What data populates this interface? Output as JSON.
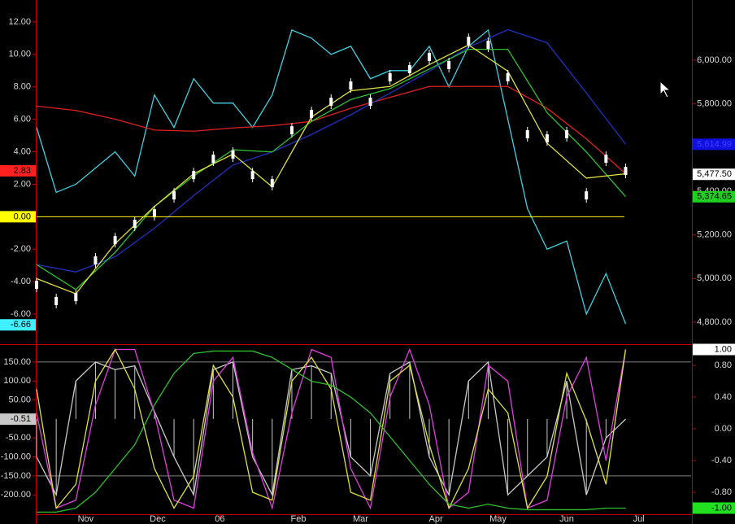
{
  "chart_data": [
    {
      "type": "line",
      "xlim": [
        0,
        200
      ],
      "ylim": [
        -7.6,
        13.35
      ],
      "yticks": [
        {
          "value": 12,
          "label": "12.00"
        },
        {
          "value": 10,
          "label": "10.00"
        },
        {
          "value": 8,
          "label": "8.00"
        },
        {
          "value": 6,
          "label": "6.00"
        },
        {
          "value": 4,
          "label": "4.00"
        },
        {
          "value": 2,
          "label": "2.00"
        },
        {
          "value": -2,
          "label": "-2.00"
        },
        {
          "value": -4,
          "label": "-4.00"
        },
        {
          "value": -6,
          "label": "-6.00"
        }
      ],
      "y2lim": [
        4718,
        6276
      ],
      "y2ticks": [
        {
          "value": 6000,
          "label": "6,000.00"
        },
        {
          "value": 5800,
          "label": "5,800.00"
        },
        {
          "value": 5400,
          "label": "5,400.00"
        },
        {
          "value": 5200,
          "label": "5,200.00"
        },
        {
          "value": 5000,
          "label": "5,000.00"
        },
        {
          "value": 4800,
          "label": "4,800.00"
        }
      ],
      "series": [
        {
          "style": "line",
          "color": "#40d0e0",
          "axis": "y",
          "x": [
            0,
            6,
            12,
            18,
            24,
            30,
            36,
            42,
            48,
            54,
            60,
            66,
            72,
            78,
            84,
            90,
            96,
            102,
            108,
            114,
            120,
            126,
            132,
            138,
            144,
            150,
            156,
            162,
            168,
            174,
            180
          ],
          "values": [
            5.5,
            1.5,
            2.0,
            3.0,
            4.0,
            2.5,
            7.5,
            5.5,
            8.5,
            7.0,
            7.0,
            5.5,
            7.5,
            11.5,
            11.0,
            10.0,
            10.5,
            8.5,
            9.0,
            9.0,
            10.5,
            8.0,
            10.5,
            11.5,
            6.0,
            0.5,
            -2.0,
            -1.5,
            -6.0,
            -3.5,
            -6.6
          ]
        },
        {
          "style": "line",
          "color": "#e02020",
          "axis": "y2",
          "x": [
            0,
            12,
            24,
            36,
            48,
            60,
            72,
            84,
            96,
            108,
            120,
            132,
            144,
            156,
            168,
            180
          ],
          "values": [
            5790,
            5770,
            5730,
            5680,
            5675,
            5690,
            5700,
            5720,
            5780,
            5830,
            5880,
            5880,
            5880,
            5780,
            5640,
            5480
          ]
        },
        {
          "style": "line",
          "color": "#2030c0",
          "axis": "y2",
          "x": [
            0,
            12,
            24,
            36,
            48,
            60,
            72,
            84,
            96,
            108,
            120,
            132,
            144,
            156,
            168,
            180
          ],
          "values": [
            5064,
            5030,
            5100,
            5230,
            5380,
            5520,
            5580,
            5660,
            5750,
            5850,
            5950,
            6060,
            6140,
            6080,
            5850,
            5615
          ]
        },
        {
          "style": "line",
          "color": "#30c030",
          "axis": "y2",
          "x": [
            0,
            12,
            24,
            36,
            48,
            60,
            72,
            84,
            96,
            108,
            120,
            132,
            144,
            156,
            168,
            180
          ],
          "values": [
            5064,
            4950,
            5120,
            5330,
            5470,
            5590,
            5580,
            5720,
            5820,
            5870,
            5960,
            6050,
            6050,
            5760,
            5580,
            5375
          ]
        },
        {
          "style": "line",
          "color": "#e0e040",
          "axis": "y2",
          "x": [
            0,
            12,
            24,
            36,
            48,
            60,
            72,
            84,
            96,
            108,
            120,
            132,
            144,
            156,
            168,
            180
          ],
          "values": [
            5000,
            4930,
            5160,
            5330,
            5480,
            5570,
            5420,
            5740,
            5860,
            5880,
            5980,
            6070,
            5950,
            5620,
            5460,
            5480
          ]
        },
        {
          "style": "candles",
          "color": "#ffffff",
          "axis": "y2",
          "x": [
            0,
            6,
            12,
            18,
            24,
            30,
            36,
            42,
            48,
            54,
            60,
            66,
            72,
            78,
            84,
            90,
            96,
            102,
            108,
            114,
            120,
            126,
            132,
            138,
            144,
            150,
            156,
            162,
            168,
            174,
            180
          ],
          "values": [
            4971,
            4897,
            4915,
            5083,
            5176,
            5251,
            5299,
            5381,
            5474,
            5549,
            5568,
            5474,
            5437,
            5679,
            5754,
            5810,
            5884,
            5810,
            5922,
            5959,
            6015,
            5978,
            6089,
            6071,
            5922,
            5661,
            5642,
            5661,
            5381,
            5549,
            5493
          ]
        }
      ],
      "markers": [
        {
          "value": 2.83,
          "label": "2.83",
          "color": "#ff2020",
          "axis": "y",
          "line": false
        },
        {
          "value": 0,
          "label": "0.00",
          "color": "#ffff00",
          "axis": "y",
          "line": true
        },
        {
          "value": -6.66,
          "label": "-6.66",
          "color": "#40f0ff",
          "axis": "y",
          "line": false
        },
        {
          "value": 5614.99,
          "label": "5,614.99",
          "color": "#1010e0",
          "axis": "y2",
          "line": false
        },
        {
          "value": 5477.5,
          "label": "5,477.50",
          "color": "#ffffff",
          "axis": "y2",
          "line": false
        },
        {
          "value": 5374.65,
          "label": "5,374.65",
          "color": "#20d020",
          "axis": "y2",
          "line": false
        }
      ]
    },
    {
      "type": "line",
      "xlim": [
        0,
        200
      ],
      "xticks": [
        {
          "value": 15,
          "label": "Nov"
        },
        {
          "value": 37,
          "label": "Dec"
        },
        {
          "value": 56,
          "label": "06"
        },
        {
          "value": 80,
          "label": "Feb"
        },
        {
          "value": 99,
          "label": "Mar"
        },
        {
          "value": 122,
          "label": "Apr"
        },
        {
          "value": 141,
          "label": "May"
        },
        {
          "value": 162,
          "label": "Jun"
        },
        {
          "value": 184,
          "label": "Jul"
        }
      ],
      "ylim": [
        -251,
        182
      ],
      "yticks": [
        {
          "value": 150,
          "label": "150.00"
        },
        {
          "value": 100,
          "label": "100.00"
        },
        {
          "value": 50,
          "label": "50.00"
        },
        {
          "value": -50,
          "label": "-50.00"
        },
        {
          "value": -100,
          "label": "-100.00"
        },
        {
          "value": -150,
          "label": "-150.00"
        },
        {
          "value": -200,
          "label": "-200.00"
        }
      ],
      "y2lim": [
        -1.077,
        0.995
      ],
      "y2ticks": [
        {
          "value": 0.8,
          "label": "0.80"
        },
        {
          "value": 0.4,
          "label": "0.40"
        },
        {
          "value": 0,
          "label": "0.00"
        },
        {
          "value": -0.4,
          "label": "-0.40"
        },
        {
          "value": -0.8,
          "label": "-0.80"
        }
      ],
      "reference_lines": [
        150,
        -150
      ],
      "series": [
        {
          "style": "histogram",
          "color": "#c8c8c8",
          "axis": "y",
          "x": [
            0,
            6,
            12,
            18,
            24,
            30,
            36,
            42,
            48,
            54,
            60,
            66,
            72,
            78,
            84,
            90,
            96,
            102,
            108,
            114,
            120,
            126,
            132,
            138,
            144,
            150,
            156,
            162,
            168,
            174,
            180
          ],
          "values": [
            -100,
            -200,
            100,
            150,
            130,
            140,
            20,
            -100,
            -200,
            130,
            150,
            -100,
            -200,
            130,
            140,
            120,
            -100,
            -150,
            120,
            150,
            -100,
            -200,
            100,
            150,
            -200,
            -150,
            -100,
            100,
            -200,
            -50,
            -0.51
          ]
        },
        {
          "style": "line",
          "color": "#e040e0",
          "axis": "y2",
          "x": [
            0,
            6,
            12,
            18,
            24,
            30,
            36,
            42,
            48,
            54,
            60,
            66,
            72,
            78,
            84,
            90,
            96,
            102,
            108,
            114,
            120,
            126,
            132,
            138,
            144,
            150,
            156,
            162,
            168,
            174,
            180
          ],
          "values": [
            0.2,
            -1,
            -0.9,
            0.3,
            1,
            1,
            0.2,
            -0.9,
            -1,
            0.6,
            0.9,
            -0.3,
            -1,
            0.2,
            1,
            0.9,
            -0.5,
            -1,
            0.4,
            1,
            0.3,
            -1,
            -0.8,
            0.8,
            0.6,
            -1,
            -0.9,
            0.4,
            0.9,
            -0.4,
            1
          ]
        },
        {
          "style": "line",
          "color": "#e0e040",
          "axis": "y2",
          "x": [
            0,
            6,
            12,
            18,
            24,
            30,
            36,
            42,
            48,
            54,
            60,
            66,
            72,
            78,
            84,
            90,
            96,
            102,
            108,
            114,
            120,
            126,
            132,
            138,
            144,
            150,
            156,
            162,
            168,
            174,
            180
          ],
          "values": [
            0.5,
            -1,
            -0.7,
            0.6,
            1,
            0.5,
            -0.5,
            -1,
            -0.6,
            0.8,
            0.4,
            -0.8,
            -0.9,
            0.6,
            0.9,
            0.5,
            -0.8,
            -0.9,
            0.6,
            0.8,
            -0.2,
            -1,
            -0.5,
            0.5,
            0.2,
            -1,
            -0.6,
            0.7,
            0.1,
            -0.7,
            1
          ]
        },
        {
          "style": "line",
          "color": "#30c030",
          "axis": "y2",
          "x": [
            0,
            6,
            12,
            18,
            24,
            30,
            36,
            42,
            48,
            54,
            60,
            66,
            72,
            78,
            84,
            90,
            96,
            102,
            108,
            114,
            120,
            126,
            132,
            138,
            144,
            150,
            156,
            162,
            168,
            174,
            180
          ],
          "values": [
            -1.05,
            -1.05,
            -1.0,
            -0.8,
            -0.5,
            -0.2,
            0.3,
            0.7,
            0.95,
            0.98,
            0.98,
            0.98,
            0.9,
            0.75,
            0.6,
            0.55,
            0.4,
            0.2,
            -0.1,
            -0.4,
            -0.7,
            -0.95,
            -1.0,
            -0.95,
            -1.0,
            -1.02,
            -1.02,
            -1.02,
            -1.02,
            -1.0,
            -1.0
          ]
        }
      ],
      "markers": [
        {
          "value": -0.51,
          "label": "-0.51",
          "color": "#c8c8c8",
          "axis": "y",
          "line": false
        },
        {
          "value": 1,
          "label": "1.00",
          "color": "#ffffff",
          "axis": "y2",
          "line": false
        },
        {
          "value": -1,
          "label": "-1.00",
          "color": "#20e020",
          "axis": "y2",
          "line": false
        }
      ]
    }
  ]
}
